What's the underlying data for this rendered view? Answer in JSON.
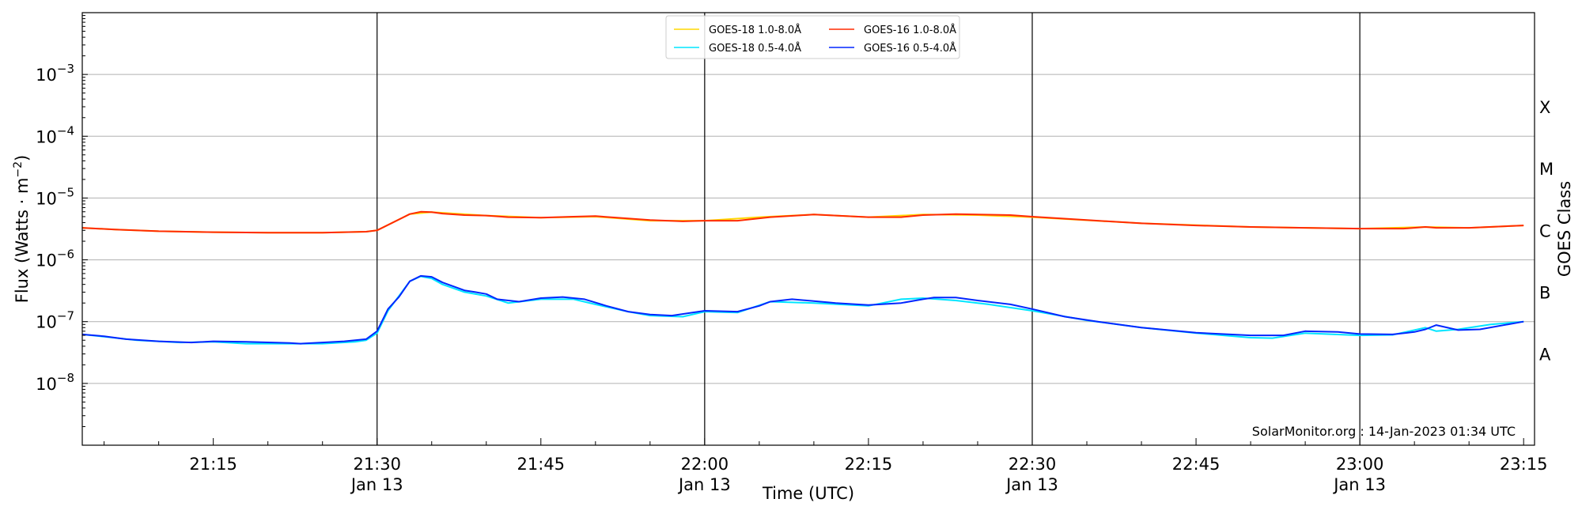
{
  "chart_data": {
    "type": "line",
    "xlabel": "Time (UTC)",
    "ylabel": "Flux (Watts · m",
    "ylabel_sup": "−2",
    "ylabel_close": ")",
    "y2label": "GOES Class",
    "yscale": "log",
    "ylim": [
      1e-09,
      0.01
    ],
    "xlim": [
      "21:03",
      "23:16"
    ],
    "grid": "horizontal",
    "legend_position": "top-center",
    "credit": "SolarMonitor.org : 14-Jan-2023 01:34 UTC",
    "y_ticks": [
      {
        "value": 1e-08,
        "base": "10",
        "exp": "−8"
      },
      {
        "value": 1e-07,
        "base": "10",
        "exp": "−7"
      },
      {
        "value": 1e-06,
        "base": "10",
        "exp": "−6"
      },
      {
        "value": 1e-05,
        "base": "10",
        "exp": "−5"
      },
      {
        "value": 0.0001,
        "base": "10",
        "exp": "−4"
      },
      {
        "value": 0.001,
        "base": "10",
        "exp": "−3"
      }
    ],
    "x_ticks": [
      {
        "time": "21:15",
        "label": "21:15",
        "date": ""
      },
      {
        "time": "21:30",
        "label": "21:30",
        "date": "Jan 13"
      },
      {
        "time": "21:45",
        "label": "21:45",
        "date": ""
      },
      {
        "time": "22:00",
        "label": "22:00",
        "date": "Jan 13"
      },
      {
        "time": "22:15",
        "label": "22:15",
        "date": ""
      },
      {
        "time": "22:30",
        "label": "22:30",
        "date": "Jan 13"
      },
      {
        "time": "22:45",
        "label": "22:45",
        "date": ""
      },
      {
        "time": "23:00",
        "label": "23:00",
        "date": "Jan 13"
      },
      {
        "time": "23:15",
        "label": "23:15",
        "date": ""
      }
    ],
    "vertical_lines": [
      "21:30",
      "22:00",
      "22:30",
      "23:00"
    ],
    "classes": [
      {
        "name": "A",
        "value": 3e-08
      },
      {
        "name": "B",
        "value": 3e-07
      },
      {
        "name": "C",
        "value": 3e-06
      },
      {
        "name": "M",
        "value": 3e-05
      },
      {
        "name": "X",
        "value": 0.0003
      }
    ],
    "series": [
      {
        "name": "GOES-18 1.0-8.0Å",
        "color": "#ffd700",
        "x": [
          "21:03",
          "21:06",
          "21:10",
          "21:15",
          "21:20",
          "21:25",
          "21:29",
          "21:30",
          "21:33",
          "21:35",
          "21:40",
          "21:45",
          "21:50",
          "21:55",
          "22:00",
          "22:05",
          "22:10",
          "22:15",
          "22:20",
          "22:25",
          "22:30",
          "22:40",
          "22:50",
          "23:00",
          "23:06",
          "23:10",
          "23:15"
        ],
        "y": [
          3.3e-06,
          3.1e-06,
          2.9e-06,
          2.8e-06,
          2.75e-06,
          2.75e-06,
          2.85e-06,
          3e-06,
          5.5e-06,
          5.9e-06,
          5.2e-06,
          4.8e-06,
          5e-06,
          4.3e-06,
          4.3e-06,
          4.9e-06,
          5.4e-06,
          4.9e-06,
          5.4e-06,
          5.3e-06,
          4.9e-06,
          3.9e-06,
          3.4e-06,
          3.2e-06,
          3.4e-06,
          3.3e-06,
          3.6e-06
        ]
      },
      {
        "name": "GOES-18 0.5-4.0Å",
        "color": "#00e5ff",
        "x": [
          "21:03",
          "21:05",
          "21:08",
          "21:12",
          "21:15",
          "21:18",
          "21:22",
          "21:25",
          "21:28",
          "21:29",
          "21:30",
          "21:31",
          "21:33",
          "21:34",
          "21:35",
          "21:36",
          "21:38",
          "21:40",
          "21:42",
          "21:45",
          "21:48",
          "21:50",
          "21:53",
          "21:55",
          "21:58",
          "22:00",
          "22:03",
          "22:06",
          "22:10",
          "22:15",
          "22:18",
          "22:20",
          "22:23",
          "22:26",
          "22:30",
          "22:35",
          "22:40",
          "22:45",
          "22:50",
          "22:52",
          "22:55",
          "23:00",
          "23:03",
          "23:06",
          "23:07",
          "23:09",
          "23:12",
          "23:15"
        ],
        "y": [
          6.2e-08,
          5.7e-08,
          5e-08,
          4.6e-08,
          4.7e-08,
          4.4e-08,
          4.4e-08,
          4.4e-08,
          4.7e-08,
          5e-08,
          6.5e-08,
          1.5e-07,
          4.5e-07,
          5.4e-07,
          5e-07,
          4e-07,
          3e-07,
          2.6e-07,
          2e-07,
          2.3e-07,
          2.3e-07,
          1.9e-07,
          1.45e-07,
          1.25e-07,
          1.2e-07,
          1.45e-07,
          1.4e-07,
          2.1e-07,
          2e-07,
          1.8e-07,
          2.3e-07,
          2.4e-07,
          2.2e-07,
          1.9e-07,
          1.5e-07,
          1.05e-07,
          8e-08,
          6.5e-08,
          5.5e-08,
          5.4e-08,
          6.5e-08,
          6e-08,
          6.1e-08,
          8e-08,
          7e-08,
          7.5e-08,
          9e-08,
          1e-07
        ]
      },
      {
        "name": "GOES-16 1.0-8.0Å",
        "color": "#ff2a00",
        "x": [
          "21:03",
          "21:06",
          "21:10",
          "21:15",
          "21:20",
          "21:25",
          "21:29",
          "21:30",
          "21:33",
          "21:34",
          "21:35",
          "21:36",
          "21:38",
          "21:40",
          "21:42",
          "21:45",
          "21:48",
          "21:50",
          "21:55",
          "21:58",
          "22:00",
          "22:03",
          "22:06",
          "22:10",
          "22:15",
          "22:18",
          "22:20",
          "22:23",
          "22:28",
          "22:30",
          "22:35",
          "22:40",
          "22:45",
          "22:50",
          "22:55",
          "23:00",
          "23:04",
          "23:06",
          "23:07",
          "23:10",
          "23:15"
        ],
        "y": [
          3.3e-06,
          3.1e-06,
          2.9e-06,
          2.8e-06,
          2.75e-06,
          2.75e-06,
          2.85e-06,
          3e-06,
          5.5e-06,
          6e-06,
          5.9e-06,
          5.6e-06,
          5.3e-06,
          5.2e-06,
          4.9e-06,
          4.8e-06,
          5e-06,
          5.1e-06,
          4.4e-06,
          4.2e-06,
          4.3e-06,
          4.3e-06,
          4.9e-06,
          5.4e-06,
          4.9e-06,
          4.9e-06,
          5.3e-06,
          5.5e-06,
          5.3e-06,
          5e-06,
          4.4e-06,
          3.9e-06,
          3.6e-06,
          3.4e-06,
          3.3e-06,
          3.2e-06,
          3.2e-06,
          3.4e-06,
          3.3e-06,
          3.3e-06,
          3.6e-06
        ]
      },
      {
        "name": "GOES-16 0.5-4.0Å",
        "color": "#0026ff",
        "x": [
          "21:03",
          "21:05",
          "21:07",
          "21:10",
          "21:13",
          "21:15",
          "21:18",
          "21:22",
          "21:23",
          "21:25",
          "21:27",
          "21:29",
          "21:30",
          "21:31",
          "21:32",
          "21:33",
          "21:34",
          "21:35",
          "21:36",
          "21:38",
          "21:39",
          "21:40",
          "21:41",
          "21:43",
          "21:45",
          "21:47",
          "21:49",
          "21:51",
          "21:53",
          "21:55",
          "21:57",
          "22:00",
          "22:03",
          "22:05",
          "22:06",
          "22:08",
          "22:10",
          "22:12",
          "22:15",
          "22:18",
          "22:20",
          "22:21",
          "22:23",
          "22:25",
          "22:28",
          "22:30",
          "22:33",
          "22:36",
          "22:40",
          "22:45",
          "22:50",
          "22:53",
          "22:55",
          "22:58",
          "23:00",
          "23:03",
          "23:05",
          "23:06",
          "23:07",
          "23:09",
          "23:11",
          "23:15"
        ],
        "y": [
          6.2e-08,
          5.8e-08,
          5.2e-08,
          4.8e-08,
          4.6e-08,
          4.8e-08,
          4.7e-08,
          4.5e-08,
          4.4e-08,
          4.6e-08,
          4.8e-08,
          5.2e-08,
          7e-08,
          1.6e-07,
          2.5e-07,
          4.5e-07,
          5.5e-07,
          5.3e-07,
          4.3e-07,
          3.2e-07,
          3e-07,
          2.8e-07,
          2.3e-07,
          2.1e-07,
          2.4e-07,
          2.5e-07,
          2.3e-07,
          1.8e-07,
          1.45e-07,
          1.3e-07,
          1.25e-07,
          1.5e-07,
          1.45e-07,
          1.8e-07,
          2.1e-07,
          2.3e-07,
          2.15e-07,
          2e-07,
          1.85e-07,
          2e-07,
          2.3e-07,
          2.45e-07,
          2.45e-07,
          2.2e-07,
          1.9e-07,
          1.6e-07,
          1.2e-07,
          1e-07,
          8e-08,
          6.6e-08,
          6e-08,
          6e-08,
          7e-08,
          6.8e-08,
          6.3e-08,
          6.2e-08,
          6.8e-08,
          7.5e-08,
          8.8e-08,
          7.3e-08,
          7.5e-08,
          1e-07
        ]
      }
    ]
  }
}
